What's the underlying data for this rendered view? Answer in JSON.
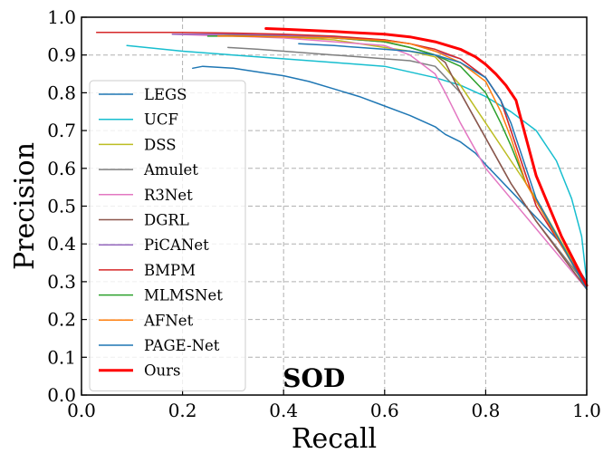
{
  "chart_data": {
    "type": "line",
    "title": "SOD",
    "xlabel": "Recall",
    "ylabel": "Precision",
    "xlim": [
      0.0,
      1.0
    ],
    "ylim": [
      0.0,
      1.0
    ],
    "xticks": [
      "0.0",
      "0.2",
      "0.4",
      "0.6",
      "0.8",
      "1.0"
    ],
    "yticks": [
      "0.0",
      "0.1",
      "0.2",
      "0.3",
      "0.4",
      "0.5",
      "0.6",
      "0.7",
      "0.8",
      "0.9",
      "1.0"
    ],
    "grid": true,
    "legend_position": "center-left",
    "series": [
      {
        "name": "LEGS",
        "color": "#1f77b4",
        "width": 1.5,
        "x": [
          0.22,
          0.24,
          0.3,
          0.35,
          0.4,
          0.45,
          0.5,
          0.55,
          0.6,
          0.65,
          0.7,
          0.72,
          0.75,
          0.78,
          0.8,
          0.85,
          0.9,
          0.95,
          1.0
        ],
        "y": [
          0.865,
          0.87,
          0.865,
          0.855,
          0.845,
          0.83,
          0.81,
          0.79,
          0.765,
          0.74,
          0.71,
          0.69,
          0.67,
          0.64,
          0.61,
          0.54,
          0.47,
          0.4,
          0.3
        ]
      },
      {
        "name": "UCF",
        "color": "#17becf",
        "width": 1.5,
        "x": [
          0.09,
          0.2,
          0.3,
          0.4,
          0.5,
          0.6,
          0.7,
          0.75,
          0.8,
          0.85,
          0.9,
          0.94,
          0.97,
          0.99,
          1.0
        ],
        "y": [
          0.925,
          0.91,
          0.9,
          0.89,
          0.88,
          0.87,
          0.84,
          0.82,
          0.79,
          0.75,
          0.7,
          0.62,
          0.52,
          0.42,
          0.3
        ]
      },
      {
        "name": "DSS",
        "color": "#bcbd22",
        "width": 1.5,
        "x": [
          0.2,
          0.3,
          0.4,
          0.5,
          0.55,
          0.6,
          0.65,
          0.7,
          0.75,
          0.8,
          0.85,
          0.9,
          1.0
        ],
        "y": [
          0.955,
          0.952,
          0.948,
          0.94,
          0.93,
          0.92,
          0.91,
          0.895,
          0.82,
          0.72,
          0.62,
          0.52,
          0.29
        ]
      },
      {
        "name": "Amulet",
        "color": "#7f7f7f",
        "width": 1.5,
        "x": [
          0.29,
          0.35,
          0.4,
          0.45,
          0.5,
          0.55,
          0.6,
          0.65,
          0.7,
          0.75,
          0.8,
          0.85,
          0.9,
          1.0
        ],
        "y": [
          0.92,
          0.915,
          0.91,
          0.905,
          0.9,
          0.895,
          0.89,
          0.885,
          0.87,
          0.8,
          0.68,
          0.56,
          0.46,
          0.29
        ]
      },
      {
        "name": "R3Net",
        "color": "#e377c2",
        "width": 1.5,
        "x": [
          0.18,
          0.3,
          0.4,
          0.5,
          0.6,
          0.65,
          0.7,
          0.72,
          0.75,
          0.8,
          0.85,
          1.0
        ],
        "y": [
          0.955,
          0.95,
          0.945,
          0.935,
          0.925,
          0.9,
          0.85,
          0.8,
          0.72,
          0.6,
          0.52,
          0.28
        ]
      },
      {
        "name": "DGRL",
        "color": "#8c564b",
        "width": 1.5,
        "x": [
          0.28,
          0.35,
          0.4,
          0.5,
          0.55,
          0.6,
          0.65,
          0.7,
          0.72,
          0.75,
          0.8,
          0.85,
          0.9,
          1.0
        ],
        "y": [
          0.955,
          0.952,
          0.95,
          0.945,
          0.94,
          0.935,
          0.92,
          0.9,
          0.88,
          0.8,
          0.68,
          0.56,
          0.46,
          0.28
        ]
      },
      {
        "name": "PiCANet",
        "color": "#9467bd",
        "width": 1.5,
        "x": [
          0.18,
          0.3,
          0.4,
          0.5,
          0.6,
          0.65,
          0.7,
          0.75,
          0.8,
          0.83,
          0.85,
          0.88,
          0.9,
          1.0
        ],
        "y": [
          0.955,
          0.955,
          0.952,
          0.948,
          0.94,
          0.93,
          0.91,
          0.89,
          0.84,
          0.78,
          0.7,
          0.58,
          0.5,
          0.29
        ]
      },
      {
        "name": "BMPM",
        "color": "#d62728",
        "width": 1.5,
        "x": [
          0.03,
          0.2,
          0.3,
          0.4,
          0.5,
          0.6,
          0.65,
          0.7,
          0.75,
          0.8,
          0.83,
          0.85,
          0.88,
          0.9,
          1.0
        ],
        "y": [
          0.96,
          0.96,
          0.958,
          0.955,
          0.95,
          0.94,
          0.93,
          0.915,
          0.89,
          0.84,
          0.78,
          0.7,
          0.58,
          0.5,
          0.29
        ]
      },
      {
        "name": "MLMSNet",
        "color": "#2ca02c",
        "width": 1.5,
        "x": [
          0.25,
          0.3,
          0.4,
          0.5,
          0.6,
          0.65,
          0.7,
          0.75,
          0.8,
          0.83,
          0.85,
          0.88,
          1.0
        ],
        "y": [
          0.95,
          0.95,
          0.948,
          0.945,
          0.935,
          0.92,
          0.9,
          0.87,
          0.8,
          0.72,
          0.66,
          0.56,
          0.28
        ]
      },
      {
        "name": "AFNet",
        "color": "#ff7f0e",
        "width": 1.5,
        "x": [
          0.27,
          0.3,
          0.4,
          0.5,
          0.6,
          0.65,
          0.7,
          0.75,
          0.8,
          0.83,
          0.85,
          0.88,
          1.0
        ],
        "y": [
          0.95,
          0.95,
          0.948,
          0.945,
          0.938,
          0.93,
          0.91,
          0.88,
          0.83,
          0.75,
          0.68,
          0.56,
          0.28
        ]
      },
      {
        "name": "PAGE-Net",
        "color": "#1f77b4",
        "width": 1.5,
        "x": [
          0.43,
          0.5,
          0.55,
          0.6,
          0.65,
          0.7,
          0.75,
          0.8,
          0.83,
          0.85,
          0.88,
          0.9,
          1.0
        ],
        "y": [
          0.93,
          0.925,
          0.92,
          0.915,
          0.91,
          0.9,
          0.88,
          0.84,
          0.78,
          0.72,
          0.6,
          0.52,
          0.28
        ]
      },
      {
        "name": "Ours",
        "color": "#ff0000",
        "width": 3,
        "x": [
          0.365,
          0.4,
          0.5,
          0.6,
          0.65,
          0.7,
          0.75,
          0.78,
          0.8,
          0.82,
          0.84,
          0.86,
          0.88,
          0.9,
          0.95,
          1.0
        ],
        "y": [
          0.97,
          0.968,
          0.962,
          0.955,
          0.948,
          0.935,
          0.915,
          0.895,
          0.875,
          0.85,
          0.82,
          0.78,
          0.68,
          0.58,
          0.42,
          0.29
        ]
      }
    ]
  }
}
